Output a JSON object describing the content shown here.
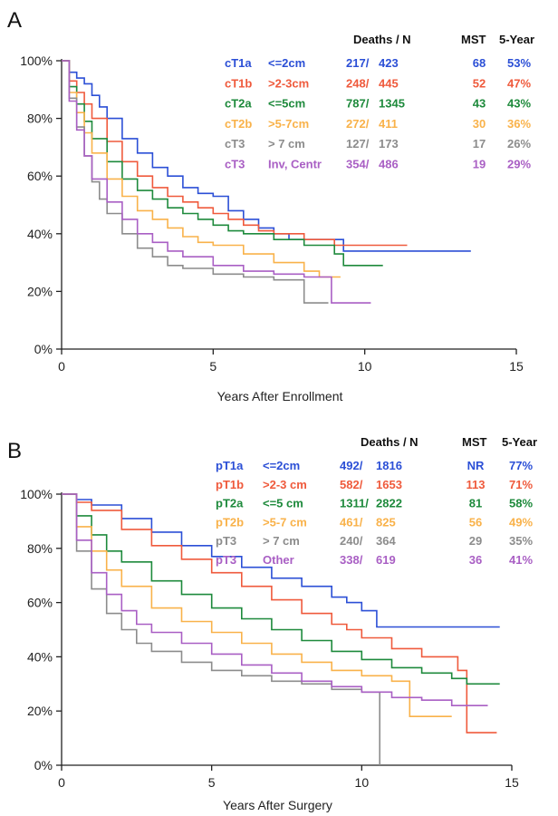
{
  "chart_data": [
    {
      "type": "line",
      "panel": "A",
      "xlabel": "Years After Enrollment",
      "ylabel": "",
      "xlim": [
        0,
        15
      ],
      "ylim": [
        0,
        100
      ],
      "xticks": [
        "0",
        "5",
        "10",
        "15"
      ],
      "yticks": [
        "0%",
        "20%",
        "40%",
        "60%",
        "80%",
        "100%"
      ],
      "table_headers": {
        "deaths": "Deaths / N",
        "mst": "MST",
        "five_year": "5-Year"
      },
      "series": [
        {
          "name": "cT1a",
          "criterion": "<=2cm",
          "deaths": "217/",
          "n": "423",
          "mst": "68",
          "five_year": "53%",
          "color": "#2b4fd6",
          "x": [
            0,
            0.25,
            0.5,
            0.75,
            1,
            1.25,
            1.5,
            2,
            2.5,
            3,
            3.5,
            4,
            4.5,
            5,
            5.5,
            6,
            6.5,
            7,
            7.5,
            8,
            9.3,
            9.3,
            13.5
          ],
          "y": [
            100,
            96,
            94,
            92,
            88,
            84,
            80,
            73,
            68,
            63,
            60,
            56,
            54,
            53,
            48,
            45,
            42,
            40,
            38,
            38,
            38,
            34,
            34
          ]
        },
        {
          "name": "cT1b",
          "criterion": ">2-3cm",
          "deaths": "248/",
          "n": "445",
          "mst": "52",
          "five_year": "47%",
          "color": "#ef5a3c",
          "x": [
            0,
            0.25,
            0.5,
            0.75,
            1,
            1.5,
            2,
            2.5,
            3,
            3.5,
            4,
            4.5,
            5,
            5.5,
            6,
            6.5,
            7,
            8,
            9,
            11.4
          ],
          "y": [
            100,
            93,
            89,
            85,
            80,
            72,
            65,
            60,
            56,
            53,
            51,
            49,
            47,
            45,
            43,
            41,
            40,
            38,
            36,
            36
          ]
        },
        {
          "name": "cT2a",
          "criterion": "<=5cm",
          "deaths": "787/",
          "n": "1345",
          "mst": "43",
          "five_year": "43%",
          "color": "#1e8a3c",
          "x": [
            0,
            0.25,
            0.5,
            0.75,
            1,
            1.5,
            2,
            2.5,
            3,
            3.5,
            4,
            4.5,
            5,
            5.5,
            6,
            7,
            8,
            9,
            9.3,
            10.6
          ],
          "y": [
            100,
            91,
            85,
            79,
            73,
            65,
            59,
            55,
            52,
            49,
            47,
            45,
            43,
            41,
            40,
            38,
            36,
            33,
            29,
            29
          ]
        },
        {
          "name": "cT2b",
          "criterion": ">5-7cm",
          "deaths": "272/",
          "n": "411",
          "mst": "30",
          "five_year": "36%",
          "color": "#f9b24a",
          "x": [
            0,
            0.25,
            0.5,
            0.75,
            1,
            1.5,
            2,
            2.5,
            3,
            3.5,
            4,
            4.5,
            5,
            6,
            7,
            8,
            8.5,
            9.2
          ],
          "y": [
            100,
            89,
            82,
            75,
            68,
            59,
            53,
            48,
            45,
            42,
            39,
            37,
            36,
            33,
            30,
            27,
            25,
            25
          ]
        },
        {
          "name": "cT3",
          "criterion": "> 7 cm",
          "deaths": "127/",
          "n": "173",
          "mst": "17",
          "five_year": "26%",
          "color": "#8c8c8c",
          "x": [
            0,
            0.25,
            0.5,
            0.75,
            1,
            1.25,
            1.5,
            2,
            2.5,
            3,
            3.5,
            4,
            5,
            6,
            7,
            8,
            8,
            8.8
          ],
          "y": [
            100,
            87,
            77,
            67,
            58,
            52,
            47,
            40,
            35,
            32,
            29,
            28,
            26,
            25,
            24,
            22,
            16,
            16
          ]
        },
        {
          "name": "cT3",
          "criterion": "Inv, Centr",
          "deaths": "354/",
          "n": "486",
          "mst": "19",
          "five_year": "29%",
          "color": "#a95fc4",
          "x": [
            0,
            0.25,
            0.5,
            0.75,
            1,
            1.5,
            2,
            2.5,
            3,
            3.5,
            4,
            5,
            6,
            7,
            8,
            8.9,
            8.9,
            10.2
          ],
          "y": [
            100,
            86,
            76,
            67,
            59,
            51,
            45,
            40,
            37,
            34,
            32,
            29,
            27,
            26,
            25,
            25,
            16,
            16
          ]
        }
      ]
    },
    {
      "type": "line",
      "panel": "B",
      "xlabel": "Years After Surgery",
      "ylabel": "",
      "xlim": [
        0,
        15
      ],
      "ylim": [
        0,
        100
      ],
      "xticks": [
        "0",
        "5",
        "10",
        "15"
      ],
      "yticks": [
        "0%",
        "20%",
        "40%",
        "60%",
        "80%",
        "100%"
      ],
      "table_headers": {
        "deaths": "Deaths / N",
        "mst": "MST",
        "five_year": "5-Year"
      },
      "series": [
        {
          "name": "pT1a",
          "criterion": "<=2cm",
          "deaths": "492/",
          "n": "1816",
          "mst": "NR",
          "five_year": "77%",
          "color": "#2b4fd6",
          "x": [
            0,
            0.5,
            1,
            2,
            3,
            4,
            5,
            6,
            7,
            8,
            9,
            9.5,
            10,
            10.5,
            14.6
          ],
          "y": [
            100,
            98,
            96,
            91,
            86,
            81,
            77,
            73,
            69,
            66,
            62,
            60,
            57,
            51,
            51
          ]
        },
        {
          "name": "pT1b",
          "criterion": ">2-3 cm",
          "deaths": "582/",
          "n": "1653",
          "mst": "113",
          "five_year": "71%",
          "color": "#ef5a3c",
          "x": [
            0,
            0.5,
            1,
            2,
            3,
            4,
            5,
            6,
            7,
            8,
            9,
            9.5,
            10,
            11,
            12,
            13.2,
            13.5,
            13.5,
            14.5
          ],
          "y": [
            100,
            97,
            94,
            87,
            81,
            76,
            71,
            66,
            61,
            56,
            52,
            50,
            47,
            43,
            40,
            35,
            28,
            12,
            12
          ]
        },
        {
          "name": "pT2a",
          "criterion": "<=5 cm",
          "deaths": "1311/",
          "n": "2822",
          "mst": "81",
          "five_year": "58%",
          "color": "#1e8a3c",
          "x": [
            0,
            0.5,
            1,
            1.5,
            2,
            3,
            4,
            5,
            6,
            7,
            8,
            9,
            10,
            11,
            12,
            13,
            13.5,
            14.6
          ],
          "y": [
            100,
            92,
            85,
            79,
            75,
            68,
            63,
            58,
            54,
            50,
            46,
            42,
            39,
            36,
            34,
            32,
            30,
            30
          ]
        },
        {
          "name": "pT2b",
          "criterion": ">5-7 cm",
          "deaths": "461/",
          "n": "825",
          "mst": "56",
          "five_year": "49%",
          "color": "#f9b24a",
          "x": [
            0,
            0.5,
            1,
            1.5,
            2,
            3,
            4,
            5,
            6,
            7,
            8,
            9,
            10,
            11,
            11.6,
            11.6,
            13
          ],
          "y": [
            100,
            88,
            79,
            72,
            66,
            58,
            53,
            49,
            45,
            41,
            38,
            35,
            33,
            31,
            30,
            18,
            18
          ]
        },
        {
          "name": "pT3",
          "criterion": "> 7 cm",
          "deaths": "240/",
          "n": "364",
          "mst": "29",
          "five_year": "35%",
          "color": "#8c8c8c",
          "x": [
            0,
            0.5,
            1,
            1.5,
            2,
            2.5,
            3,
            4,
            5,
            6,
            7,
            8,
            9,
            10,
            10.6,
            10.6
          ],
          "y": [
            100,
            79,
            65,
            56,
            50,
            45,
            42,
            38,
            35,
            33,
            31,
            30,
            28,
            27,
            27,
            0
          ]
        },
        {
          "name": "pT3",
          "criterion": "Other",
          "deaths": "338/",
          "n": "619",
          "mst": "36",
          "five_year": "41%",
          "color": "#a95fc4",
          "x": [
            0,
            0.5,
            1,
            1.5,
            2,
            2.5,
            3,
            4,
            5,
            6,
            7,
            8,
            9,
            10,
            11,
            12,
            13,
            14.2
          ],
          "y": [
            100,
            83,
            71,
            63,
            57,
            52,
            49,
            45,
            41,
            37,
            34,
            31,
            29,
            27,
            25,
            24,
            22,
            22
          ]
        }
      ]
    }
  ]
}
